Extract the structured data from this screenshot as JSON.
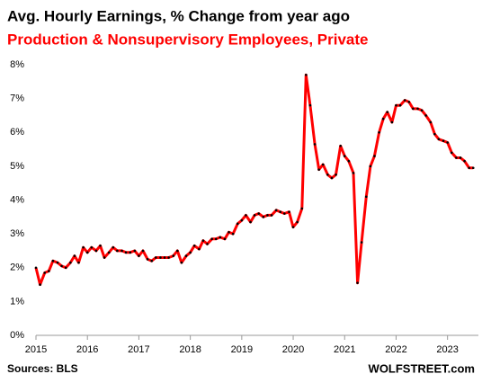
{
  "chart_data": {
    "type": "line",
    "title": "Avg. Hourly Earnings, % Change from year ago",
    "subtitle": "Production & Nonsupervisory  Employees, Private",
    "source": "Sources: BLS",
    "credit": "WOLFSTREET.com",
    "x": [
      2015.0,
      2015.08,
      2015.17,
      2015.25,
      2015.33,
      2015.42,
      2015.5,
      2015.58,
      2015.67,
      2015.75,
      2015.83,
      2015.92,
      2016.0,
      2016.08,
      2016.17,
      2016.25,
      2016.33,
      2016.42,
      2016.5,
      2016.58,
      2016.67,
      2016.75,
      2016.83,
      2016.92,
      2017.0,
      2017.08,
      2017.17,
      2017.25,
      2017.33,
      2017.42,
      2017.5,
      2017.58,
      2017.67,
      2017.75,
      2017.83,
      2017.92,
      2018.0,
      2018.08,
      2018.17,
      2018.25,
      2018.33,
      2018.42,
      2018.5,
      2018.58,
      2018.67,
      2018.75,
      2018.83,
      2018.92,
      2019.0,
      2019.08,
      2019.17,
      2019.25,
      2019.33,
      2019.42,
      2019.5,
      2019.58,
      2019.67,
      2019.75,
      2019.83,
      2019.92,
      2020.0,
      2020.08,
      2020.17,
      2020.25,
      2020.33,
      2020.42,
      2020.5,
      2020.58,
      2020.67,
      2020.75,
      2020.83,
      2020.92,
      2021.0,
      2021.08,
      2021.17,
      2021.25,
      2021.33,
      2021.42,
      2021.5,
      2021.58,
      2021.67,
      2021.75,
      2021.83,
      2021.92,
      2022.0,
      2022.08,
      2022.17,
      2022.25,
      2022.33,
      2022.42,
      2022.5,
      2022.58,
      2022.67,
      2022.75,
      2022.83,
      2022.92,
      2023.0,
      2023.08,
      2023.17,
      2023.25,
      2023.33,
      2023.42,
      2023.5
    ],
    "series": [
      {
        "name": "Avg. Hourly Earnings",
        "color": "#ff0000",
        "marker_color": "#000000",
        "values": [
          2.0,
          1.5,
          1.85,
          1.9,
          2.2,
          2.15,
          2.05,
          2.0,
          2.15,
          2.35,
          2.15,
          2.6,
          2.45,
          2.6,
          2.5,
          2.65,
          2.3,
          2.45,
          2.6,
          2.5,
          2.5,
          2.45,
          2.45,
          2.5,
          2.35,
          2.5,
          2.25,
          2.2,
          2.3,
          2.3,
          2.3,
          2.3,
          2.35,
          2.5,
          2.15,
          2.35,
          2.45,
          2.65,
          2.55,
          2.8,
          2.7,
          2.85,
          2.85,
          2.9,
          2.85,
          3.05,
          3.0,
          3.3,
          3.4,
          3.55,
          3.35,
          3.55,
          3.6,
          3.5,
          3.55,
          3.55,
          3.7,
          3.65,
          3.6,
          3.65,
          3.2,
          3.35,
          3.75,
          7.7,
          6.8,
          5.65,
          4.9,
          5.05,
          4.75,
          4.65,
          4.75,
          5.6,
          5.3,
          5.15,
          4.8,
          1.55,
          2.75,
          4.1,
          5.0,
          5.3,
          6.0,
          6.4,
          6.6,
          6.3,
          6.8,
          6.8,
          6.95,
          6.9,
          6.7,
          6.7,
          6.65,
          6.5,
          6.3,
          5.95,
          5.8,
          5.75,
          5.7,
          5.4,
          5.25,
          5.25,
          5.15,
          4.95,
          4.95
        ]
      }
    ],
    "xlim": [
      2015,
      2023.6
    ],
    "xticks": [
      2015,
      2016,
      2017,
      2018,
      2019,
      2020,
      2021,
      2022,
      2023
    ],
    "ylim": [
      0,
      8
    ],
    "yticks": [
      {
        "value": 0,
        "label": "0%"
      },
      {
        "value": 1,
        "label": "1%"
      },
      {
        "value": 2,
        "label": "2%"
      },
      {
        "value": 3,
        "label": "3%"
      },
      {
        "value": 4,
        "label": "4%"
      },
      {
        "value": 5,
        "label": "5%"
      },
      {
        "value": 6,
        "label": "6%"
      },
      {
        "value": 7,
        "label": "7%"
      },
      {
        "value": 8,
        "label": "8%"
      }
    ],
    "grid": false
  }
}
